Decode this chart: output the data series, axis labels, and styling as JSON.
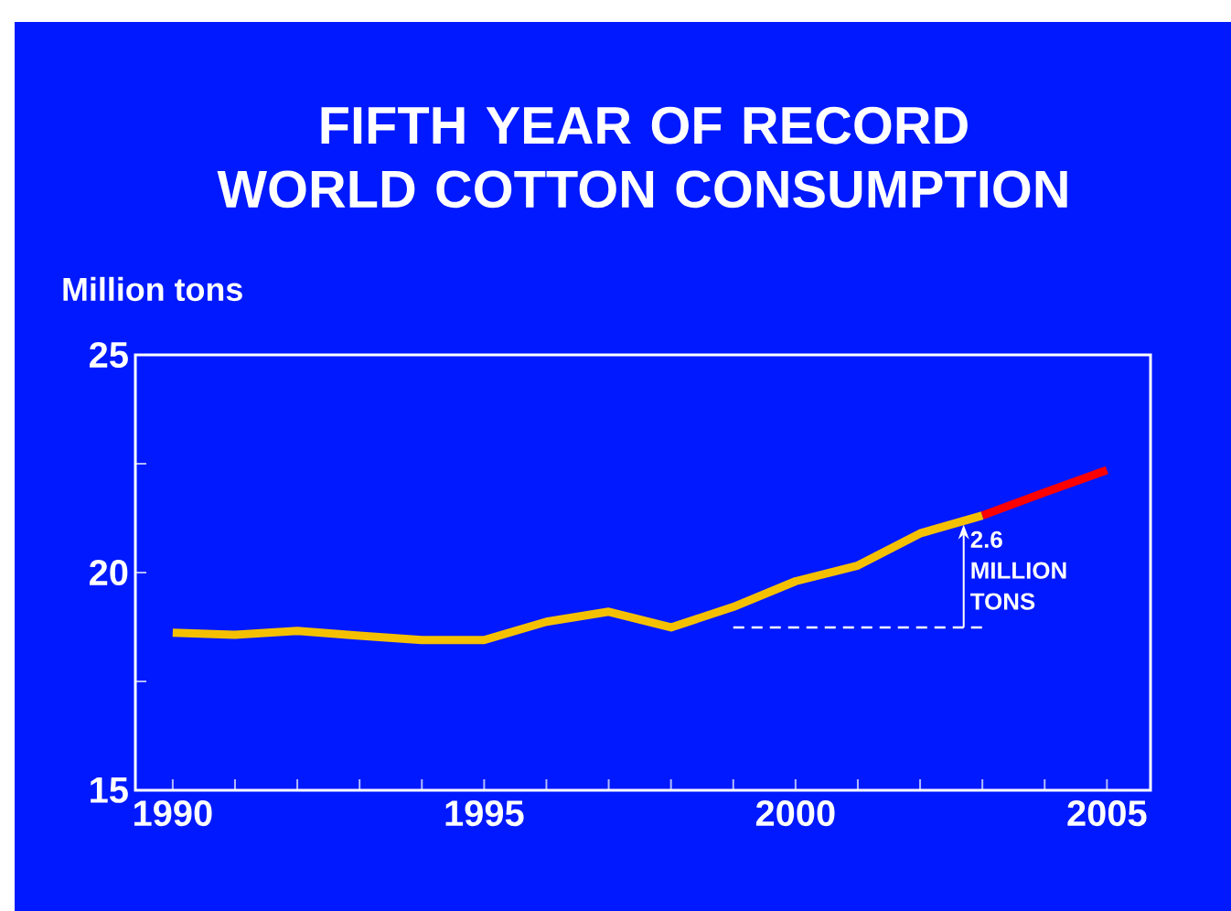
{
  "chart_data": {
    "type": "line",
    "title": "FIFTH YEAR OF RECORD\nWORLD COTTON CONSUMPTION",
    "ylabel": "Million tons",
    "x": [
      1990,
      1991,
      1992,
      1993,
      1994,
      1995,
      1996,
      1997,
      1998,
      1999,
      2000,
      2001,
      2002,
      2003,
      2004,
      2005
    ],
    "series": [
      {
        "color": "#f5c000",
        "values": [
          18.62,
          18.57,
          18.66,
          18.55,
          18.45,
          18.45,
          18.87,
          19.1,
          18.74,
          19.21,
          19.8,
          20.16,
          20.9,
          21.31,
          null,
          null
        ]
      },
      {
        "color": "#ff0000",
        "values": [
          null,
          null,
          null,
          null,
          null,
          null,
          null,
          null,
          null,
          null,
          null,
          null,
          null,
          21.31,
          21.84,
          22.35
        ]
      },
      {
        "color": "#ffffff",
        "line_style": "dashed",
        "x": [
          1999,
          2003
        ],
        "values": [
          18.74,
          18.74
        ]
      }
    ],
    "annotations": [
      {
        "text": "2.6\nMILLION\nTONS",
        "x": 2002.7,
        "y": 21.1
      }
    ],
    "xlim": [
      1989.4,
      2005.7
    ],
    "ylim": [
      15,
      25
    ],
    "xticks": [
      1990,
      {
        "value": 1991,
        "label": null
      },
      {
        "value": 1992,
        "label": null
      },
      {
        "value": 1993,
        "label": null
      },
      {
        "value": 1994,
        "label": null
      },
      1995,
      {
        "value": 1996,
        "label": null
      },
      {
        "value": 1997,
        "label": null
      },
      {
        "value": 1998,
        "label": null
      },
      {
        "value": 1999,
        "label": null
      },
      2000,
      {
        "value": 2001,
        "label": null
      },
      {
        "value": 2002,
        "label": null
      },
      {
        "value": 2003,
        "label": null
      },
      {
        "value": 2004,
        "label": null
      },
      2005
    ],
    "yticks": [
      15,
      {
        "value": 17.5,
        "label": null
      },
      20,
      {
        "value": 22.5,
        "label": null
      },
      25
    ],
    "marker": "none",
    "line_style": "solid"
  }
}
